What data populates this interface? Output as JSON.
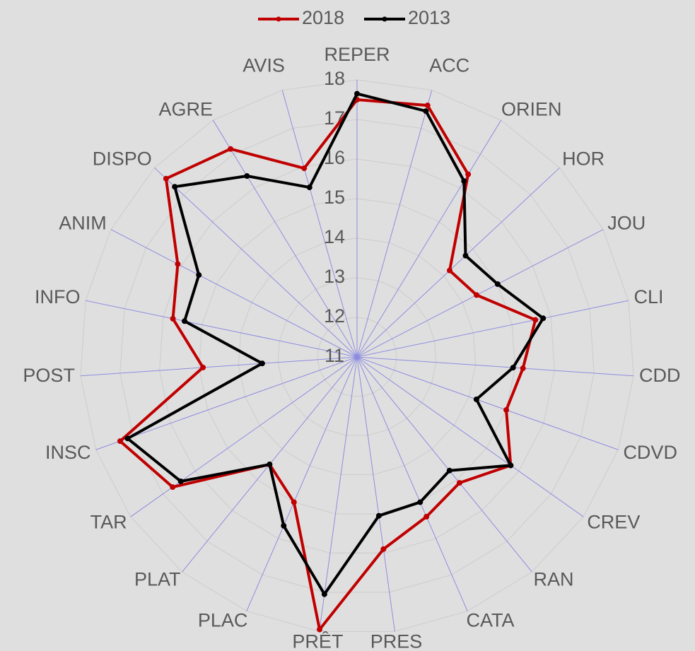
{
  "chart_data": {
    "type": "radar",
    "categories": [
      "REPER",
      "ACC",
      "ORIEN",
      "HOR",
      "JOU",
      "CLI",
      "CDD",
      "CDVD",
      "CREV",
      "RAN",
      "CATA",
      "PRES",
      "PRÊT",
      "PLAC",
      "PLAT",
      "TAR",
      "INSC",
      "POST",
      "INFO",
      "ANIM",
      "DISPO",
      "AGRE",
      "AVIS"
    ],
    "series": [
      {
        "name": "2018",
        "color": "#c00000",
        "values": [
          17.5,
          17.6,
          16.4,
          14.2,
          14.4,
          15.6,
          15.2,
          15.0,
          15.75,
          15.1,
          15.4,
          15.9,
          17.95,
          15.0,
          14.5,
          16.7,
          17.35,
          14.9,
          15.75,
          16.1,
          17.6,
          17.15,
          15.95
        ]
      },
      {
        "name": "2013",
        "color": "#000000",
        "values": [
          17.65,
          17.45,
          16.2,
          14.75,
          15.0,
          15.8,
          14.95,
          14.2,
          15.75,
          14.7,
          15.0,
          15.05,
          17.05,
          15.65,
          14.5,
          16.45,
          17.15,
          13.4,
          15.45,
          15.5,
          17.3,
          16.35,
          15.45
        ]
      }
    ],
    "ylim": [
      11,
      18
    ],
    "yticks": [
      11,
      12,
      13,
      14,
      15,
      16,
      17,
      18
    ],
    "grid": true,
    "legend": "top"
  }
}
